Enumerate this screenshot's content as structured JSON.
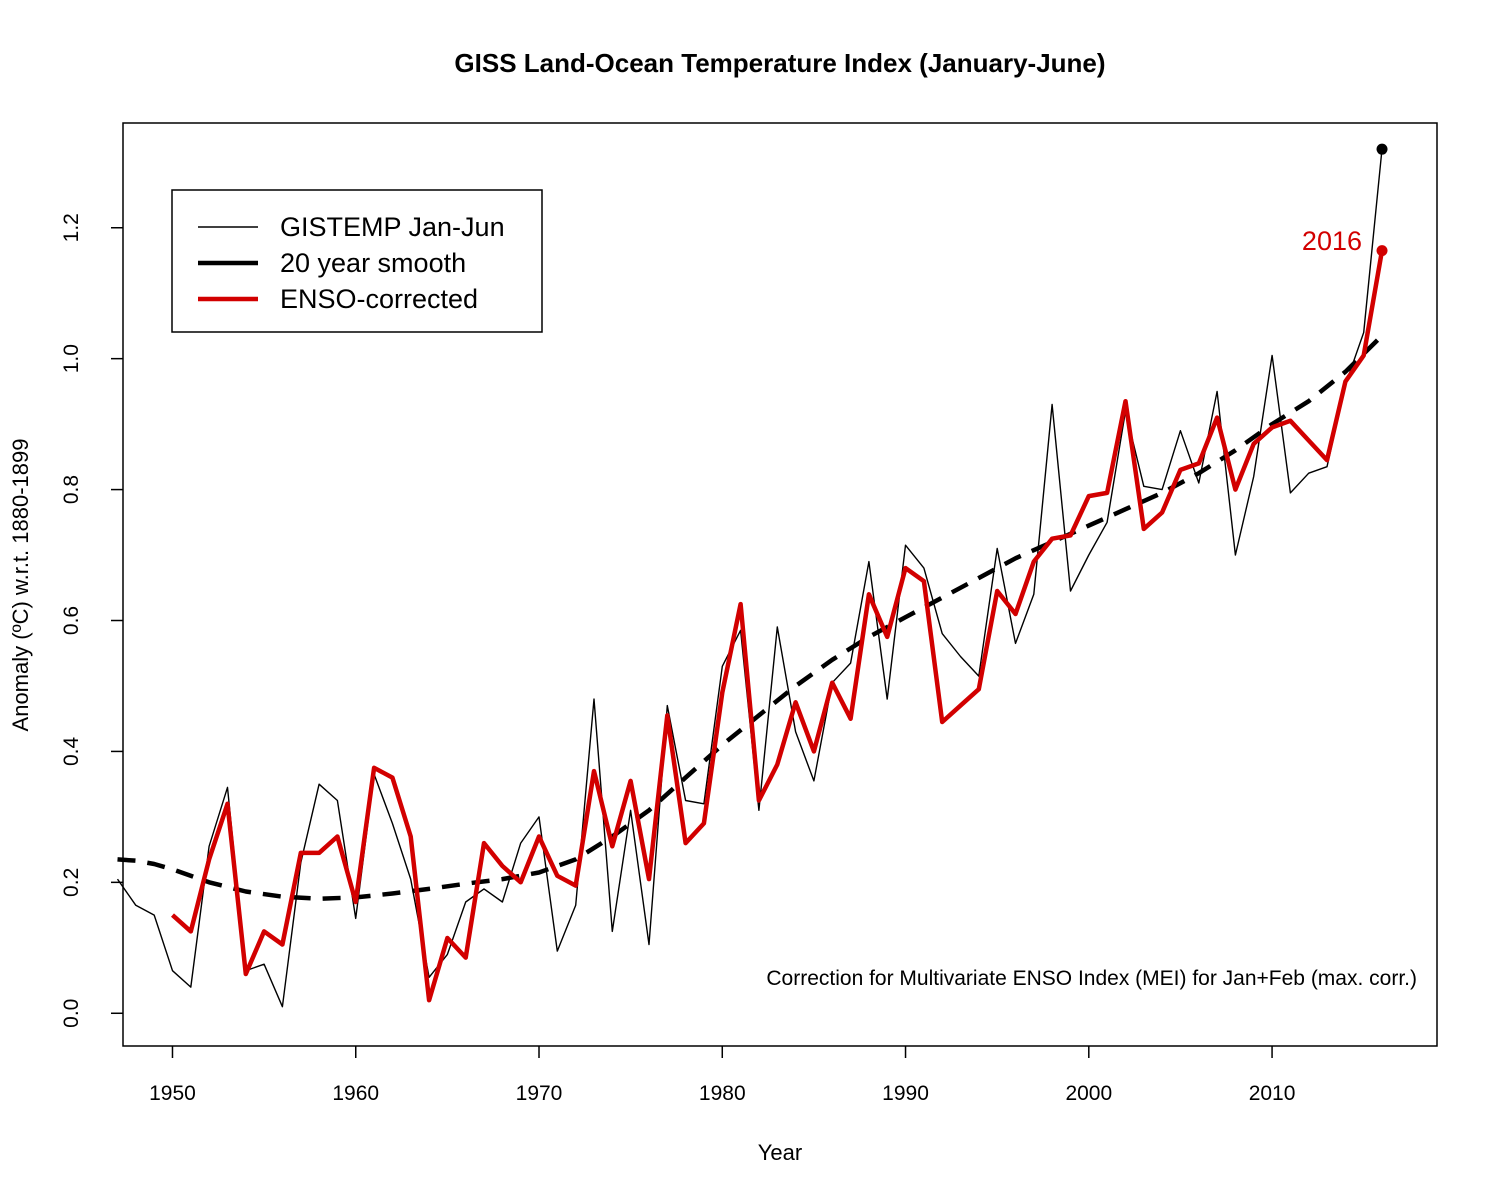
{
  "chart_data": {
    "type": "line",
    "title": "GISS Land-Ocean Temperature Index (January-June)",
    "xlabel": "Year",
    "ylabel": "Anomaly (ºC) w.r.t. 1880-1899",
    "xlim": [
      1947.3,
      2019
    ],
    "ylim": [
      -0.05,
      1.36
    ],
    "x_ticks": [
      1950,
      1960,
      1970,
      1980,
      1990,
      2000,
      2010
    ],
    "x_tick_labels": [
      "1950",
      "1960",
      "1970",
      "1980",
      "1990",
      "2000",
      "2010"
    ],
    "y_ticks": [
      0.0,
      0.2,
      0.4,
      0.6,
      0.8,
      1.0,
      1.2
    ],
    "y_tick_labels": [
      "0.0",
      "0.2",
      "0.4",
      "0.6",
      "0.8",
      "1.0",
      "1.2"
    ],
    "grid": false,
    "legend_position": "top-left",
    "annotation": "Correction for Multivariate ENSO Index (MEI) for Jan+Feb (max. corr.)",
    "highlight_label": "2016",
    "series": [
      {
        "name": "GISTEMP Jan-Jun",
        "color": "#000000",
        "style": "thin-solid",
        "x": [
          1947,
          1948,
          1949,
          1950,
          1951,
          1952,
          1953,
          1954,
          1955,
          1956,
          1957,
          1958,
          1959,
          1960,
          1961,
          1962,
          1963,
          1964,
          1965,
          1966,
          1967,
          1968,
          1969,
          1970,
          1971,
          1972,
          1973,
          1974,
          1975,
          1976,
          1977,
          1978,
          1979,
          1980,
          1981,
          1982,
          1983,
          1984,
          1985,
          1986,
          1987,
          1988,
          1989,
          1990,
          1991,
          1992,
          1993,
          1994,
          1995,
          1996,
          1997,
          1998,
          1999,
          2000,
          2001,
          2002,
          2003,
          2004,
          2005,
          2006,
          2007,
          2008,
          2009,
          2010,
          2011,
          2012,
          2013,
          2014,
          2015,
          2016
        ],
        "y": [
          0.205,
          0.165,
          0.15,
          0.065,
          0.04,
          0.255,
          0.345,
          0.065,
          0.075,
          0.01,
          0.23,
          0.35,
          0.325,
          0.145,
          0.365,
          0.29,
          0.205,
          0.055,
          0.09,
          0.17,
          0.19,
          0.17,
          0.26,
          0.3,
          0.095,
          0.165,
          0.48,
          0.125,
          0.31,
          0.105,
          0.47,
          0.325,
          0.32,
          0.53,
          0.585,
          0.31,
          0.59,
          0.43,
          0.355,
          0.505,
          0.535,
          0.69,
          0.48,
          0.715,
          0.68,
          0.58,
          0.545,
          0.515,
          0.71,
          0.565,
          0.64,
          0.93,
          0.645,
          0.7,
          0.75,
          0.92,
          0.805,
          0.8,
          0.89,
          0.81,
          0.95,
          0.7,
          0.82,
          1.005,
          0.795,
          0.825,
          0.835,
          0.96,
          1.04,
          1.32
        ]
      },
      {
        "name": "20 year smooth",
        "color": "#000000",
        "style": "thick-dashed",
        "x": [
          1947,
          1948,
          1949,
          1950,
          1952,
          1954,
          1956,
          1958,
          1960,
          1962,
          1964,
          1966,
          1968,
          1970,
          1972,
          1974,
          1976,
          1978,
          1980,
          1982,
          1984,
          1986,
          1988,
          1990,
          1992,
          1994,
          1996,
          1998,
          2000,
          2002,
          2004,
          2006,
          2008,
          2010,
          2012,
          2014,
          2016
        ],
        "y": [
          0.235,
          0.233,
          0.228,
          0.22,
          0.2,
          0.186,
          0.178,
          0.175,
          0.177,
          0.183,
          0.19,
          0.198,
          0.205,
          0.215,
          0.235,
          0.27,
          0.31,
          0.36,
          0.41,
          0.455,
          0.5,
          0.54,
          0.575,
          0.605,
          0.635,
          0.665,
          0.695,
          0.72,
          0.745,
          0.77,
          0.795,
          0.825,
          0.86,
          0.9,
          0.935,
          0.98,
          1.035
        ]
      },
      {
        "name": "ENSO-corrected",
        "color": "#d20000",
        "style": "thick-solid",
        "x": [
          1950,
          1951,
          1952,
          1953,
          1954,
          1955,
          1956,
          1957,
          1958,
          1959,
          1960,
          1961,
          1962,
          1963,
          1964,
          1965,
          1966,
          1967,
          1968,
          1969,
          1970,
          1971,
          1972,
          1973,
          1974,
          1975,
          1976,
          1977,
          1978,
          1979,
          1980,
          1981,
          1982,
          1983,
          1984,
          1985,
          1986,
          1987,
          1988,
          1989,
          1990,
          1991,
          1992,
          1993,
          1994,
          1995,
          1996,
          1997,
          1998,
          1999,
          2000,
          2001,
          2002,
          2003,
          2004,
          2005,
          2006,
          2007,
          2008,
          2009,
          2010,
          2011,
          2012,
          2013,
          2014,
          2015,
          2016
        ],
        "y": [
          0.15,
          0.125,
          0.235,
          0.32,
          0.06,
          0.125,
          0.105,
          0.245,
          0.245,
          0.27,
          0.17,
          0.375,
          0.36,
          0.27,
          0.02,
          0.115,
          0.085,
          0.26,
          0.225,
          0.2,
          0.27,
          0.21,
          0.195,
          0.37,
          0.255,
          0.355,
          0.205,
          0.455,
          0.26,
          0.29,
          0.49,
          0.625,
          0.325,
          0.38,
          0.475,
          0.4,
          0.505,
          0.45,
          0.64,
          0.575,
          0.68,
          0.66,
          0.445,
          0.47,
          0.495,
          0.645,
          0.61,
          0.69,
          0.725,
          0.73,
          0.79,
          0.795,
          0.935,
          0.74,
          0.765,
          0.83,
          0.84,
          0.91,
          0.8,
          0.87,
          0.895,
          0.905,
          0.875,
          0.845,
          0.965,
          1.005,
          1.165
        ]
      }
    ],
    "endpoints": [
      {
        "series": "GISTEMP Jan-Jun",
        "x": 2016,
        "y": 1.32,
        "color": "#000000"
      },
      {
        "series": "ENSO-corrected",
        "x": 2016,
        "y": 1.165,
        "color": "#d20000"
      }
    ]
  }
}
